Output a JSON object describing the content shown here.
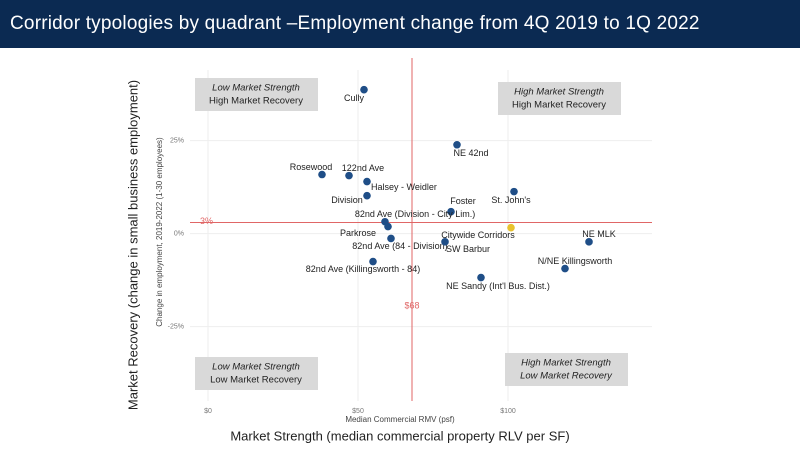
{
  "chart_data": {
    "type": "scatter",
    "title": "Corridor typologies by quadrant –Employment change from 4Q 2019 to 1Q 2022",
    "x_label": "Median Commercial RMV (psf)",
    "y_label": "Change in employment, 2019-2022 (1-30 employees)",
    "outer_x_label": "Market Strength (median commercial property RLV per SF)",
    "outer_y_label": "Market Recovery (change in small business employment)",
    "labels": [
      "Cully",
      "NE 42nd",
      "Rosewood",
      "122nd Ave",
      "Halsey - Weidler",
      "Division",
      "St. John's",
      "Foster",
      "82nd Ave (Division - City Lim.)",
      "Citywide Corridors",
      "Parkrose",
      "82nd Ave (84 - Division)",
      "SW Barbur",
      "NE MLK",
      "N/NE Killingsworth",
      "82nd Ave (Killingsworth - 84)",
      "NE Sandy (Int'l Bus. Dist.)"
    ],
    "x": [
      52,
      83,
      38,
      47,
      53,
      53,
      102,
      81,
      59,
      101,
      60,
      61,
      79,
      127,
      119,
      55,
      91
    ],
    "y": [
      38.7,
      23.9,
      15.9,
      15.6,
      14,
      10.2,
      11.3,
      5.9,
      3.2,
      1.6,
      1.9,
      -1.3,
      -2.2,
      -2.2,
      -9.4,
      -7.5,
      -11.8
    ],
    "colors": [
      "#1f4e87",
      "#1f4e87",
      "#1f4e87",
      "#1f4e87",
      "#1f4e87",
      "#1f4e87",
      "#1f4e87",
      "#1f4e87",
      "#1f4e87",
      "#e8c22e",
      "#1f4e87",
      "#1f4e87",
      "#1f4e87",
      "#1f4e87",
      "#1f4e87",
      "#1f4e87",
      "#1f4e87"
    ],
    "xlim": [
      -6,
      148
    ],
    "ylim": [
      -45,
      44
    ],
    "xticks": [
      {
        "value": 0,
        "label": "$0"
      },
      {
        "value": 50,
        "label": "$50"
      },
      {
        "value": 100,
        "label": "$100"
      }
    ],
    "yticks": [
      {
        "value": -25,
        "label": "-25%"
      },
      {
        "value": 0,
        "label": "0%"
      },
      {
        "value": 25,
        "label": "25%"
      }
    ],
    "grid": true,
    "reference_lines": {
      "x": {
        "value": 68,
        "label": "$68"
      },
      "y": {
        "value": 3,
        "label": "3%"
      }
    },
    "reference_color": "#e06666",
    "quadrants": [
      {
        "line1": "Low Market Strength",
        "line2": "High Market Recovery"
      },
      {
        "line1": "High Market Strength",
        "line2": "High Market Recovery"
      },
      {
        "line1": "Low Market Strength",
        "line2": "Low Market Recovery"
      },
      {
        "line1": "High Market Strength",
        "line2": "Low Market Recovery"
      }
    ]
  }
}
